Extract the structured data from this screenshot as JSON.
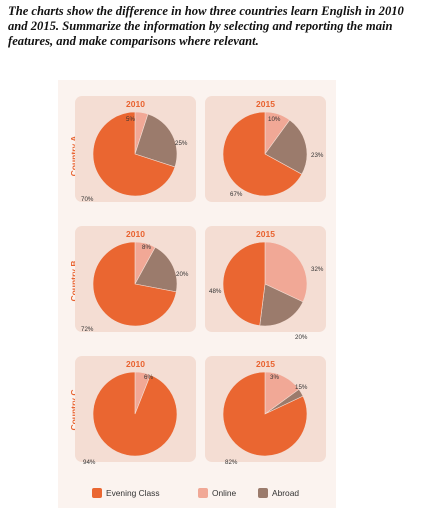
{
  "prompt": "The charts show the difference in how three countries learn English in 2010 and 2015. Summarize the information by selecting and reporting the main features, and make comparisons where relevant.",
  "colors": {
    "evening": "#ea6631",
    "online": "#f1a896",
    "abroad": "#9b7b6c"
  },
  "legend": [
    {
      "label": "Evening Class",
      "color": "#ea6631"
    },
    {
      "label": "Online",
      "color": "#f1a896"
    },
    {
      "label": "Abroad",
      "color": "#9b7b6c"
    }
  ],
  "chart_data": [
    {
      "type": "pie",
      "country": "Country A",
      "year": "2010",
      "categories": [
        "Evening Class",
        "Online",
        "Abroad"
      ],
      "values": [
        70,
        5,
        25
      ],
      "labels": [
        "70%",
        "5%",
        "25%"
      ]
    },
    {
      "type": "pie",
      "country": "Country A",
      "year": "2015",
      "categories": [
        "Evening Class",
        "Online",
        "Abroad"
      ],
      "values": [
        67,
        10,
        23
      ],
      "labels": [
        "67%",
        "10%",
        "23%"
      ]
    },
    {
      "type": "pie",
      "country": "Country B",
      "year": "2010",
      "categories": [
        "Evening Class",
        "Online",
        "Abroad"
      ],
      "values": [
        72,
        8,
        20
      ],
      "labels": [
        "72%",
        "8%",
        "20%"
      ]
    },
    {
      "type": "pie",
      "country": "Country B",
      "year": "2015",
      "categories": [
        "Evening Class",
        "Online",
        "Abroad"
      ],
      "values": [
        48,
        32,
        20
      ],
      "labels": [
        "48%",
        "32%",
        "20%"
      ]
    },
    {
      "type": "pie",
      "country": "Country C",
      "year": "2010",
      "categories": [
        "Evening Class",
        "Online",
        "Abroad"
      ],
      "values": [
        94,
        6,
        0
      ],
      "labels": [
        "94%",
        "6%",
        ""
      ]
    },
    {
      "type": "pie",
      "country": "Country C",
      "year": "2015",
      "categories": [
        "Evening Class",
        "Online",
        "Abroad"
      ],
      "values": [
        82,
        15,
        3
      ],
      "labels": [
        "82%",
        "15%",
        "3%"
      ]
    }
  ]
}
